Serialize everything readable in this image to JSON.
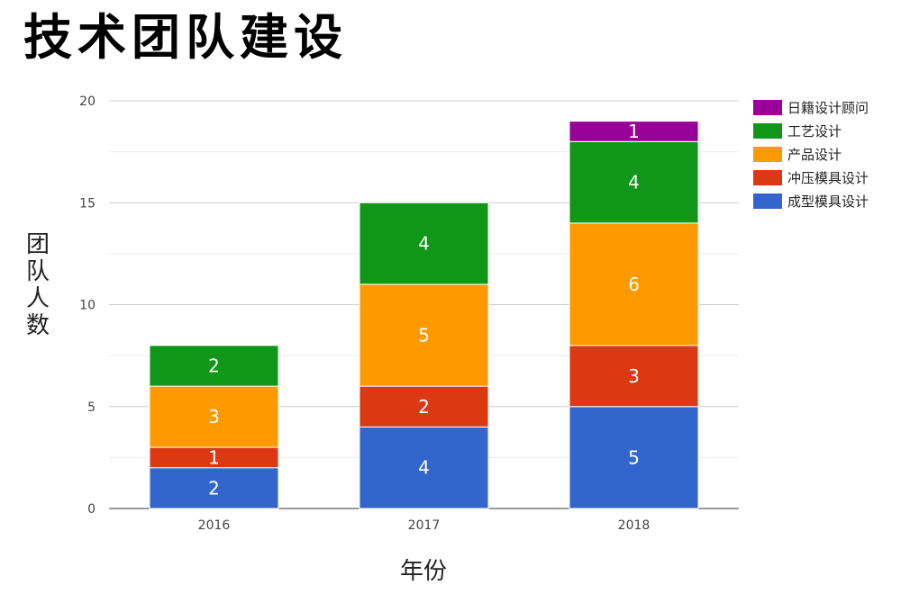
{
  "chart_data": {
    "type": "bar",
    "stacked": true,
    "title": "技术团队建设",
    "xlabel": "年份",
    "ylabel": "团队人数",
    "categories": [
      "2016",
      "2017",
      "2018"
    ],
    "ylim": [
      0,
      20
    ],
    "yticks": [
      0,
      5,
      10,
      15,
      20
    ],
    "grid": true,
    "legend_position": "right",
    "series": [
      {
        "name": "成型模具设计",
        "color": "#3366cc",
        "values": [
          2,
          4,
          5
        ]
      },
      {
        "name": "冲压模具设计",
        "color": "#dc3912",
        "values": [
          1,
          2,
          3
        ]
      },
      {
        "name": "产品设计",
        "color": "#ff9900",
        "values": [
          3,
          5,
          6
        ]
      },
      {
        "name": "工艺设计",
        "color": "#109618",
        "values": [
          2,
          4,
          4
        ]
      },
      {
        "name": "日籍设计顾问",
        "color": "#990099",
        "values": [
          0,
          0,
          1
        ]
      }
    ],
    "legend_order": [
      "日籍设计顾问",
      "工艺设计",
      "产品设计",
      "冲压模具设计",
      "成型模具设计"
    ]
  }
}
